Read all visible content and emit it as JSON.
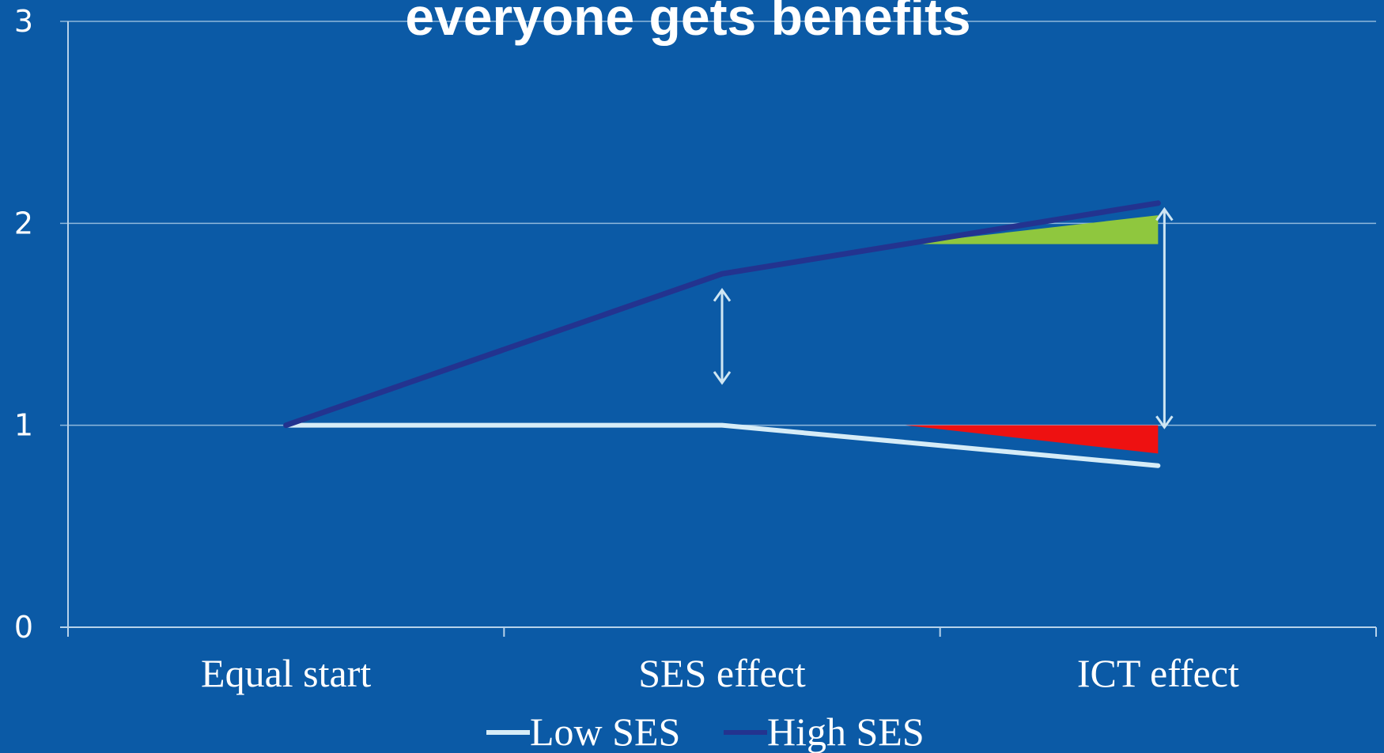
{
  "chart_data": {
    "type": "line",
    "title": "everyone gets benefits",
    "categories": [
      "Equal start",
      "SES effect",
      "ICT effect"
    ],
    "series": [
      {
        "name": "Low SES",
        "values": [
          1,
          1,
          0.8
        ],
        "color": "#d6ecf7"
      },
      {
        "name": "High SES",
        "values": [
          1,
          1.75,
          2.1
        ],
        "color": "#23338f"
      }
    ],
    "ylim": [
      0,
      3
    ],
    "yticks": [
      "0",
      "1",
      "2",
      "3"
    ],
    "grid": true,
    "legend": "bottom",
    "annotations": {
      "green_wedge_color": "#8fc73e",
      "red_wedge_color": "#ee1111",
      "arrow_color": "#cfe6f3"
    }
  }
}
